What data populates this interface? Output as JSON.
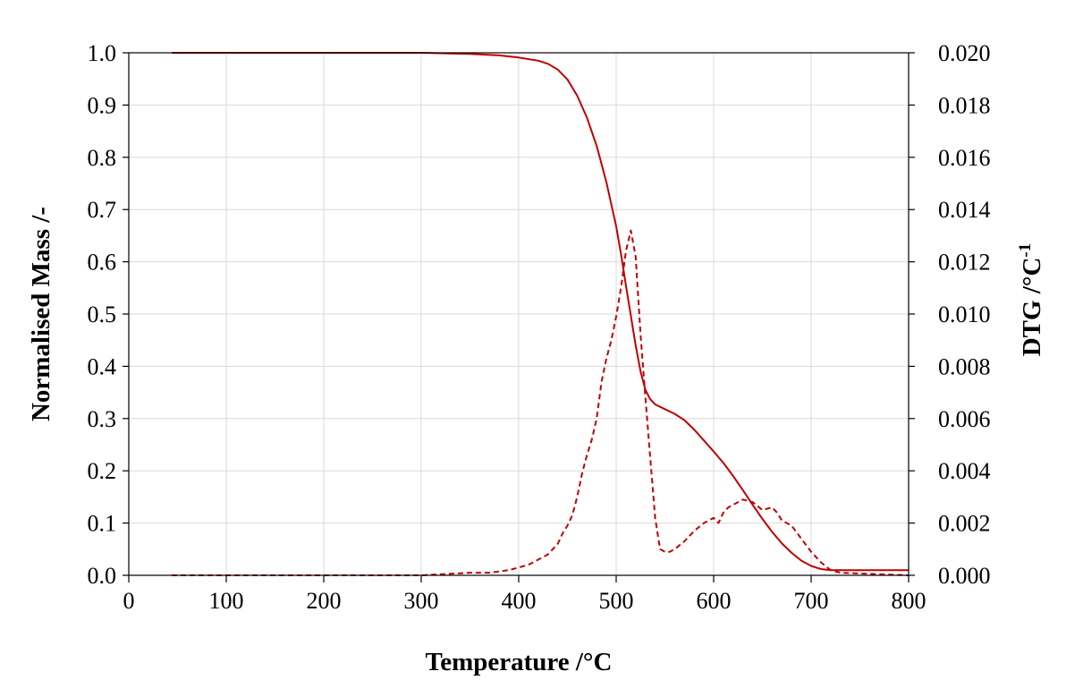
{
  "chart_data": {
    "type": "line",
    "xlabel": "Temperature /°C",
    "ylabel_left": "Normalised Mass /-",
    "ylabel_right_base": "DTG  /°C",
    "ylabel_right_sup": "-1",
    "xlim": [
      0,
      800
    ],
    "ylim_left": [
      0,
      1.0
    ],
    "ylim_right": [
      0,
      0.02
    ],
    "x_ticks": [
      "0",
      "100",
      "200",
      "300",
      "400",
      "500",
      "600",
      "700",
      "800"
    ],
    "y_left_ticks": [
      "0.0",
      "0.1",
      "0.2",
      "0.3",
      "0.4",
      "0.5",
      "0.6",
      "0.7",
      "0.8",
      "0.9",
      "1.0"
    ],
    "y_right_ticks": [
      "0.000",
      "0.002",
      "0.004",
      "0.006",
      "0.008",
      "0.010",
      "0.012",
      "0.014",
      "0.016",
      "0.018",
      "0.020"
    ],
    "grid": true,
    "series": [
      {
        "axis": "left",
        "style": "solid",
        "color": "#c00000",
        "x": [
          44,
          100,
          200,
          300,
          350,
          380,
          400,
          420,
          430,
          440,
          450,
          460,
          470,
          480,
          490,
          500,
          505,
          510,
          515,
          520,
          525,
          530,
          535,
          540,
          550,
          560,
          570,
          580,
          590,
          600,
          610,
          620,
          630,
          640,
          650,
          660,
          670,
          680,
          690,
          700,
          710,
          720,
          730,
          800
        ],
        "y": [
          1.0,
          1.0,
          1.0,
          1.0,
          0.998,
          0.995,
          0.991,
          0.985,
          0.979,
          0.968,
          0.949,
          0.918,
          0.876,
          0.822,
          0.752,
          0.668,
          0.615,
          0.555,
          0.497,
          0.44,
          0.39,
          0.355,
          0.337,
          0.327,
          0.318,
          0.309,
          0.297,
          0.279,
          0.258,
          0.237,
          0.215,
          0.19,
          0.163,
          0.135,
          0.108,
          0.083,
          0.061,
          0.043,
          0.028,
          0.018,
          0.012,
          0.01,
          0.01,
          0.01
        ]
      },
      {
        "axis": "right",
        "style": "dashed",
        "color": "#c00000",
        "x": [
          44,
          100,
          200,
          300,
          350,
          370,
          390,
          400,
          410,
          420,
          430,
          440,
          445,
          450,
          455,
          460,
          465,
          470,
          475,
          480,
          485,
          490,
          495,
          500,
          505,
          510,
          515,
          520,
          525,
          530,
          535,
          540,
          545,
          550,
          555,
          560,
          570,
          580,
          590,
          600,
          605,
          610,
          615,
          620,
          630,
          640,
          650,
          660,
          665,
          670,
          680,
          690,
          700,
          710,
          720,
          730,
          800
        ],
        "y": [
          0.0,
          0.0,
          0.0,
          0.0,
          0.0001,
          0.0001,
          0.0002,
          0.0003,
          0.0004,
          0.0006,
          0.0008,
          0.0012,
          0.0016,
          0.0019,
          0.0023,
          0.003,
          0.0039,
          0.0046,
          0.0052,
          0.006,
          0.0074,
          0.0083,
          0.009,
          0.0099,
          0.011,
          0.0124,
          0.0132,
          0.0122,
          0.0092,
          0.0068,
          0.0045,
          0.0022,
          0.001,
          0.0009,
          0.0009,
          0.001,
          0.0013,
          0.0017,
          0.002,
          0.0022,
          0.002,
          0.0024,
          0.0026,
          0.0027,
          0.0029,
          0.0028,
          0.0025,
          0.0026,
          0.0024,
          0.0021,
          0.0019,
          0.0014,
          0.0009,
          0.0005,
          0.0002,
          0.0001,
          0.0
        ]
      }
    ]
  }
}
